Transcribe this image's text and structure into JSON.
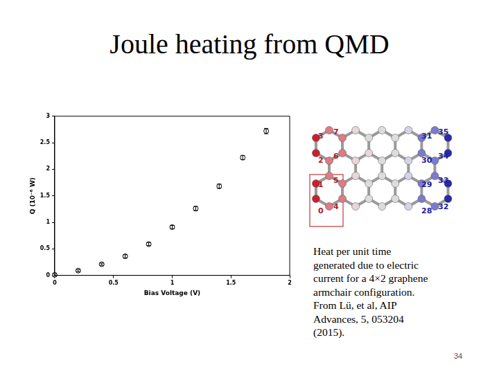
{
  "chart_data": {
    "type": "scatter",
    "x_label": "Bias Voltage (V)",
    "y_label": "Q (10⁻⁶ W)",
    "x": [
      0,
      0.2,
      0.4,
      0.6,
      0.8,
      1.0,
      1.2,
      1.4,
      1.6,
      1.8
    ],
    "values": [
      0.01,
      0.09,
      0.21,
      0.36,
      0.59,
      0.91,
      1.26,
      1.68,
      2.22,
      2.72
    ],
    "errors": [
      0.02,
      0.02,
      0.02,
      0.03,
      0.03,
      0.03,
      0.04,
      0.04,
      0.04,
      0.05
    ],
    "color": "#000000",
    "marker": "circle",
    "xlim": [
      0,
      2
    ],
    "xticks": [
      0,
      0.5,
      1,
      1.5,
      2
    ],
    "ylim": [
      0,
      3
    ],
    "yticks": [
      0,
      0.5,
      1,
      1.5,
      2,
      2.5,
      3
    ],
    "grid": false
  },
  "slide": {
    "title": "Joule heating from QMD",
    "caption_lines": [
      "Heat per unit time",
      "generated due to electric",
      "current for a 4×2 graphene",
      "armchair configuration.",
      "From Lü, et al, AIP",
      "Advances, 5, 053204",
      "(2015)."
    ],
    "page": 34,
    "diagram": {
      "left_labels": [
        [
          "3",
          "7"
        ],
        [
          "2",
          "6"
        ],
        [
          "1",
          "5"
        ],
        [
          "0",
          "4"
        ]
      ],
      "right_labels": [
        [
          "31",
          "35"
        ],
        [
          "30",
          "34"
        ],
        [
          "29",
          "33"
        ],
        [
          "28",
          "32"
        ]
      ]
    }
  }
}
